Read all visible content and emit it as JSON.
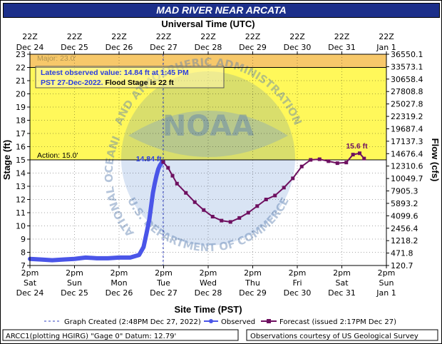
{
  "title": "MAD RIVER NEAR ARCATA",
  "colors": {
    "title_bg": "#1c2f8a",
    "major_band": "#f7c86a",
    "flood_band": "#fff85a",
    "observed": "#4a55e8",
    "forecast": "#6e1060",
    "annotation_text": "#2a3de0",
    "current_line": "#3040c0"
  },
  "chart_data": {
    "type": "line",
    "top_axis_title": "Universal Time (UTC)",
    "top_tick_labels": [
      [
        "22Z",
        "Dec 24"
      ],
      [
        "22Z",
        "Dec 25"
      ],
      [
        "22Z",
        "Dec 26"
      ],
      [
        "22Z",
        "Dec 27"
      ],
      [
        "22Z",
        "Dec 28"
      ],
      [
        "22Z",
        "Dec 29"
      ],
      [
        "22Z",
        "Dec 30"
      ],
      [
        "22Z",
        "Dec 31"
      ],
      [
        "22Z",
        "Jan 1"
      ]
    ],
    "xlabel": "Site Time (PST)",
    "bottom_tick_labels": [
      [
        "2pm",
        "Sat",
        "Dec 24"
      ],
      [
        "2pm",
        "Sun",
        "Dec 25"
      ],
      [
        "2pm",
        "Mon",
        "Dec 26"
      ],
      [
        "2pm",
        "Tue",
        "Dec 27"
      ],
      [
        "2pm",
        "Wed",
        "Dec 28"
      ],
      [
        "2pm",
        "Thu",
        "Dec 29"
      ],
      [
        "2pm",
        "Fri",
        "Dec 30"
      ],
      [
        "2pm",
        "Sat",
        "Dec 31"
      ],
      [
        "2pm",
        "Sun",
        "Jan 1"
      ]
    ],
    "x_unit": "days after 2pm PST Dec 24",
    "xlim": [
      0,
      8
    ],
    "ylabel": "Stage (ft)",
    "ylim": [
      7,
      23
    ],
    "y_ticks": [
      7,
      8,
      9,
      10,
      11,
      12,
      13,
      14,
      15,
      16,
      17,
      18,
      19,
      20,
      21,
      22,
      23
    ],
    "y2label": "Flow (cfs)",
    "y2_tick_labels": [
      "120.7",
      "471.8",
      "1218.2",
      "2456.4",
      "4099.6",
      "5893.2",
      "7905.3",
      "10049.7",
      "12310.6",
      "14676.4",
      "17137.3",
      "19687.4",
      "22319.2",
      "25027.8",
      "27808.8",
      "30658.4",
      "33573.1",
      "36550.1"
    ],
    "thresholds": [
      {
        "label": "Action: 15.0'",
        "value": 15.0
      },
      {
        "label": "Flood Stage is 22 ft",
        "value": 22.0
      }
    ],
    "major_label": "Major: 23.0'",
    "annotation": {
      "line1": "Latest observed value: 14.84 ft at 1:45 PM",
      "line2_a": "PST 27-Dec-2022.",
      "line2_b": " Flood Stage is 22 ft"
    },
    "observed_peak_label": "14.84 ft",
    "forecast_peak_label": "15.6 ft",
    "current_time_x": 2.99,
    "series": [
      {
        "name": "Observed",
        "x": [
          0,
          0.25,
          0.5,
          0.75,
          1.0,
          1.25,
          1.5,
          1.75,
          2.0,
          2.25,
          2.45,
          2.55,
          2.62,
          2.68,
          2.72,
          2.76,
          2.8,
          2.84,
          2.88,
          2.92,
          2.96,
          2.99
        ],
        "y": [
          7.5,
          7.45,
          7.4,
          7.45,
          7.5,
          7.6,
          7.55,
          7.55,
          7.6,
          7.6,
          7.8,
          8.4,
          9.5,
          10.5,
          11.5,
          12.5,
          13.2,
          13.8,
          14.3,
          14.6,
          14.8,
          14.84
        ]
      },
      {
        "name": "Forecast (issued 2:17PM Dec 27)",
        "x": [
          2.99,
          3.1,
          3.2,
          3.3,
          3.5,
          3.7,
          3.9,
          4.1,
          4.3,
          4.5,
          4.7,
          4.9,
          5.1,
          5.3,
          5.5,
          5.7,
          5.9,
          6.1,
          6.3,
          6.5,
          6.7,
          6.9,
          7.1,
          7.25,
          7.4,
          7.5
        ],
        "y": [
          14.84,
          14.4,
          13.8,
          13.2,
          12.5,
          11.8,
          11.2,
          10.7,
          10.4,
          10.3,
          10.6,
          11.0,
          11.5,
          12.0,
          12.3,
          12.9,
          13.6,
          14.5,
          15.0,
          15.05,
          14.9,
          14.75,
          14.8,
          15.4,
          15.5,
          15.1
        ]
      }
    ],
    "legend": {
      "created": "Graph Created (2:48PM Dec 27, 2022)",
      "observed": "Observed",
      "forecast": "Forecast (issued 2:17PM Dec 27)"
    }
  },
  "footer": {
    "left": "ARCC1(plotting HGIRG) \"Gage 0\" Datum: 12.79'",
    "right": "Observations courtesy of US Geological Survey"
  },
  "watermark": {
    "noaa": "NOAA",
    "ring_left": "NATIONAL OCEANIC",
    "ring_top": "AND ATMOSPHERIC ADMINISTRATION",
    "ring_bottom": "U.S. DEPARTMENT OF COMMERCE"
  }
}
